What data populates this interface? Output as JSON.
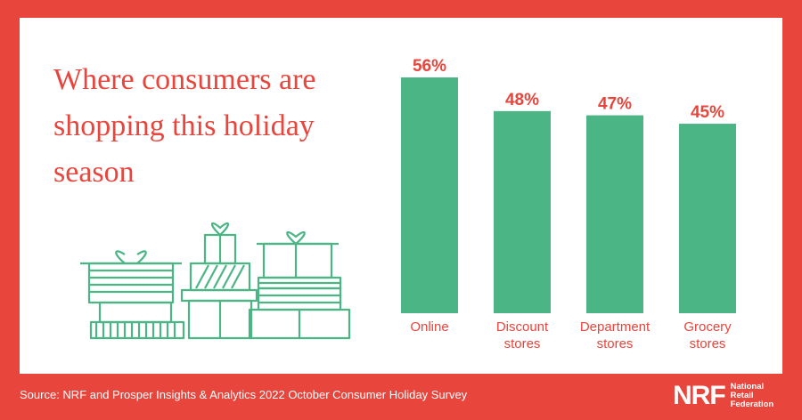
{
  "colors": {
    "background": "#e8453c",
    "panel": "#ffffff",
    "bar": "#4cb585",
    "value_label": "#e8453c",
    "category_label": "#e8453c",
    "gift_stroke": "#4cb585"
  },
  "chart_data": {
    "type": "bar",
    "title": "Where consumers are shopping this holiday season",
    "categories": [
      [
        "Online"
      ],
      [
        "Discount",
        "stores"
      ],
      [
        "Department",
        "stores"
      ],
      [
        "Grocery",
        "stores"
      ]
    ],
    "values": [
      56,
      48,
      47,
      45
    ],
    "value_labels": [
      "56%",
      "48%",
      "47%",
      "45%"
    ],
    "ylim": [
      0,
      56
    ],
    "xlabel": "",
    "ylabel": "",
    "grid": false,
    "legend": "none"
  },
  "footer": {
    "source": "Source: NRF and Prosper Insights & Analytics 2022 October Consumer Holiday Survey"
  },
  "logo": {
    "mark": "NRF",
    "line1": "National",
    "line2": "Retail",
    "line3": "Federation"
  },
  "illustration": {
    "icon": "gift-boxes-icon"
  }
}
